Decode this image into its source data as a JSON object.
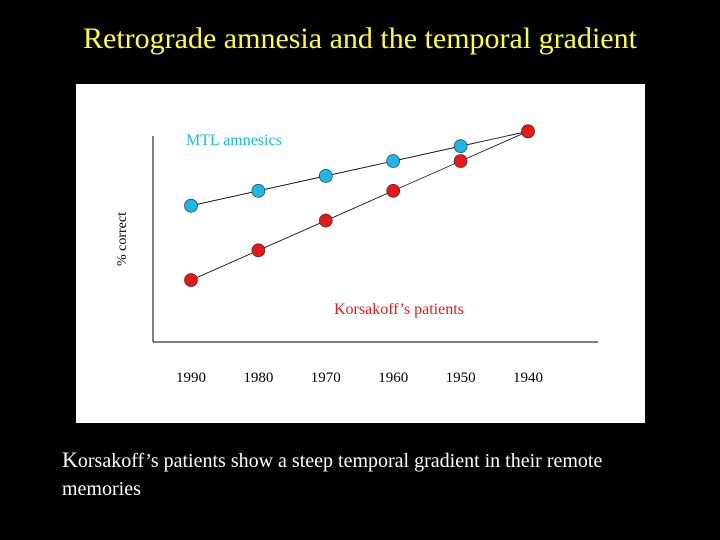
{
  "slide": {
    "title": "Retrograde amnesia and the temporal gradient",
    "caption_first_letter": "K",
    "caption_rest": "orsakoff’s patients show a steep temporal gradient in their remote memories"
  },
  "colors": {
    "title": "#ffff33",
    "mtl": "#1ab8e8",
    "korsakoff": "#e81818"
  },
  "chart_data": {
    "type": "line",
    "title": "",
    "xlabel": "",
    "ylabel": "% correct",
    "categories": [
      "1990",
      "1980",
      "1970",
      "1960",
      "1950",
      "1940"
    ],
    "ylim": [
      0,
      100
    ],
    "grid": false,
    "series": [
      {
        "name": "MTL amnesics",
        "color": "#1ab8e8",
        "values": [
          55,
          63,
          71,
          79,
          87,
          95
        ]
      },
      {
        "name": "Korsakoff’s patients",
        "color": "#e81818",
        "values": [
          15,
          31,
          47,
          63,
          79,
          95
        ]
      }
    ]
  }
}
